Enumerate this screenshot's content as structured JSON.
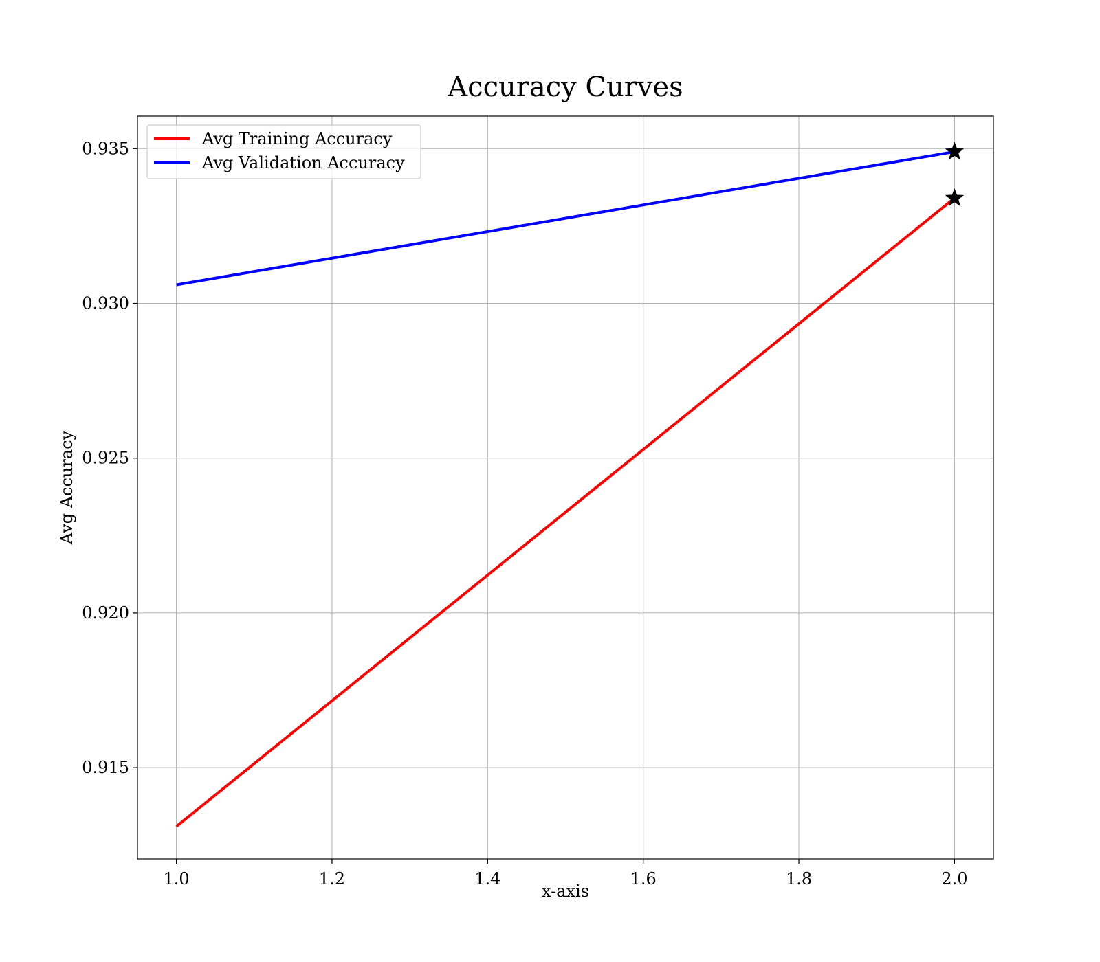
{
  "chart_data": {
    "type": "line",
    "title": "Accuracy Curves",
    "xlabel": "x-axis",
    "ylabel": "Avg Accuracy",
    "xlim": [
      0.95,
      2.05
    ],
    "ylim": [
      0.91205,
      0.93605
    ],
    "x_ticks": [
      1.0,
      1.2,
      1.4,
      1.6,
      1.8,
      2.0
    ],
    "x_tick_labels": [
      "1.0",
      "1.2",
      "1.4",
      "1.6",
      "1.8",
      "2.0"
    ],
    "y_ticks": [
      0.915,
      0.92,
      0.925,
      0.93,
      0.935
    ],
    "y_tick_labels": [
      "0.915",
      "0.920",
      "0.925",
      "0.930",
      "0.935"
    ],
    "grid": true,
    "legend_position": "top-left",
    "series": [
      {
        "name": "Avg Training Accuracy",
        "color": "#ff0000",
        "x": [
          1,
          2
        ],
        "y": [
          0.9131,
          0.9334
        ],
        "best_marker": {
          "x": 2,
          "y": 0.9334,
          "shape": "star",
          "color": "#000000"
        }
      },
      {
        "name": "Avg Validation Accuracy",
        "color": "#0000ff",
        "x": [
          1,
          2
        ],
        "y": [
          0.9306,
          0.9349
        ],
        "best_marker": {
          "x": 2,
          "y": 0.9349,
          "shape": "star",
          "color": "#000000"
        }
      }
    ]
  }
}
